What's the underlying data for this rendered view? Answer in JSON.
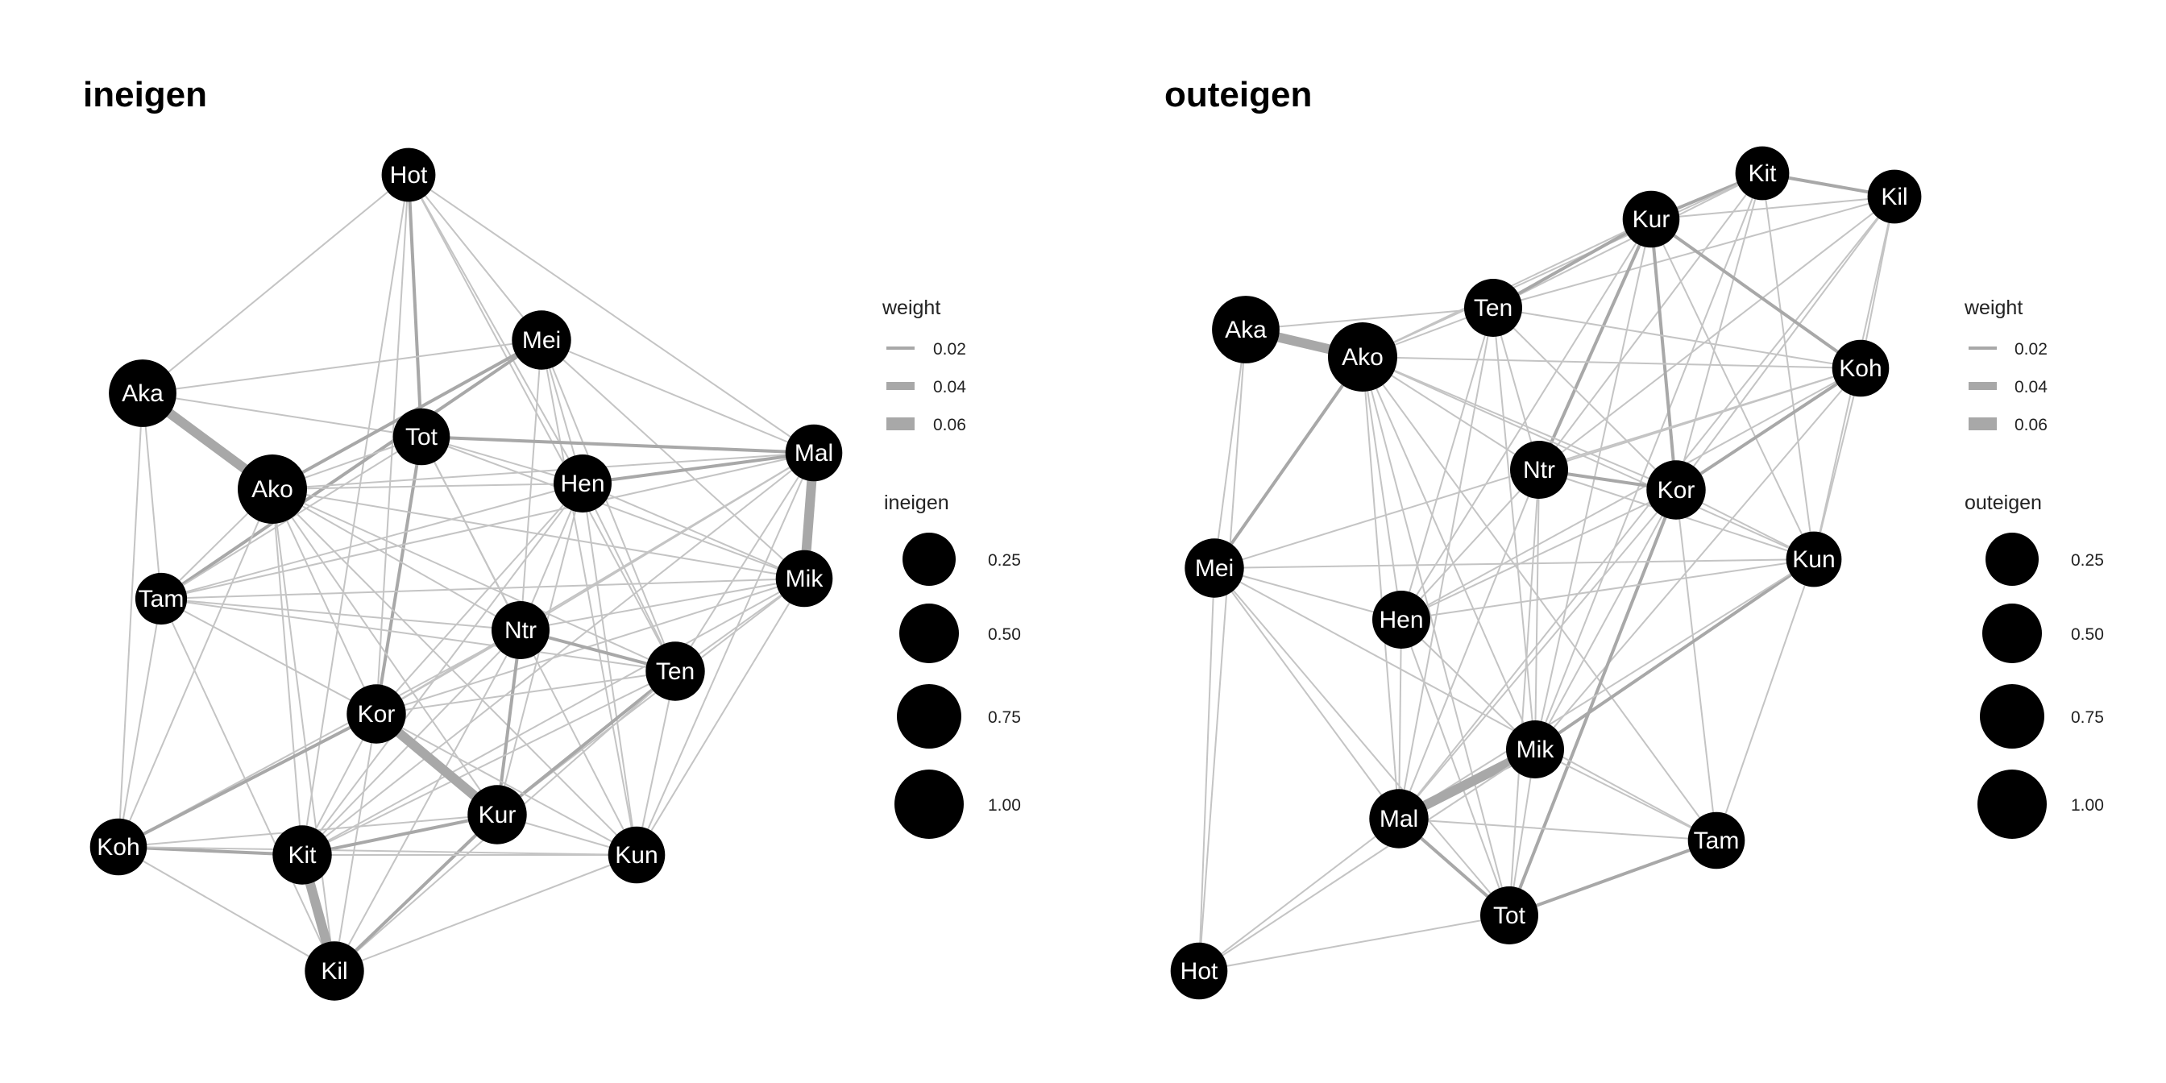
{
  "panels": [
    {
      "title": "ineigen",
      "legend": {
        "weight_title": "weight",
        "weight_items": [
          {
            "label": "0.02",
            "value": 0.02
          },
          {
            "label": "0.04",
            "value": 0.04
          },
          {
            "label": "0.06",
            "value": 0.06
          }
        ],
        "size_title": "ineigen",
        "size_items": [
          {
            "label": "0.25",
            "value": 0.25
          },
          {
            "label": "0.50",
            "value": 0.5
          },
          {
            "label": "0.75",
            "value": 0.75
          },
          {
            "label": "1.00",
            "value": 1.0
          }
        ]
      },
      "nodes": [
        {
          "label": "Hot",
          "value": 0.1
        },
        {
          "label": "Mei",
          "value": 0.3
        },
        {
          "label": "Aka",
          "value": 0.85
        },
        {
          "label": "Tot",
          "value": 0.2
        },
        {
          "label": "Ako",
          "value": 1.0
        },
        {
          "label": "Hen",
          "value": 0.25
        },
        {
          "label": "Mal",
          "value": 0.2
        },
        {
          "label": "Tam",
          "value": 0.05
        },
        {
          "label": "Mik",
          "value": 0.2
        },
        {
          "label": "Ntr",
          "value": 0.25
        },
        {
          "label": "Ten",
          "value": 0.3
        },
        {
          "label": "Kor",
          "value": 0.3
        },
        {
          "label": "Kur",
          "value": 0.3
        },
        {
          "label": "Koh",
          "value": 0.2
        },
        {
          "label": "Kit",
          "value": 0.3
        },
        {
          "label": "Kun",
          "value": 0.2
        },
        {
          "label": "Kil",
          "value": 0.3
        }
      ]
    },
    {
      "title": "outeigen",
      "legend": {
        "weight_title": "weight",
        "weight_items": [
          {
            "label": "0.02",
            "value": 0.02
          },
          {
            "label": "0.04",
            "value": 0.04
          },
          {
            "label": "0.06",
            "value": 0.06
          }
        ],
        "size_title": "outeigen",
        "size_items": [
          {
            "label": "0.25",
            "value": 0.25
          },
          {
            "label": "0.50",
            "value": 0.5
          },
          {
            "label": "0.75",
            "value": 0.75
          },
          {
            "label": "1.00",
            "value": 1.0
          }
        ]
      },
      "nodes": [
        {
          "label": "Kit",
          "value": 0.1
        },
        {
          "label": "Kil",
          "value": 0.1
        },
        {
          "label": "Kur",
          "value": 0.2
        },
        {
          "label": "Ten",
          "value": 0.25
        },
        {
          "label": "Aka",
          "value": 0.85
        },
        {
          "label": "Ako",
          "value": 1.0
        },
        {
          "label": "Koh",
          "value": 0.2
        },
        {
          "label": "Ntr",
          "value": 0.25
        },
        {
          "label": "Kor",
          "value": 0.3
        },
        {
          "label": "Mei",
          "value": 0.3
        },
        {
          "label": "Kun",
          "value": 0.15
        },
        {
          "label": "Hen",
          "value": 0.25
        },
        {
          "label": "Mik",
          "value": 0.25
        },
        {
          "label": "Mal",
          "value": 0.3
        },
        {
          "label": "Tam",
          "value": 0.2
        },
        {
          "label": "Tot",
          "value": 0.25
        },
        {
          "label": "Hot",
          "value": 0.2
        }
      ]
    }
  ]
}
